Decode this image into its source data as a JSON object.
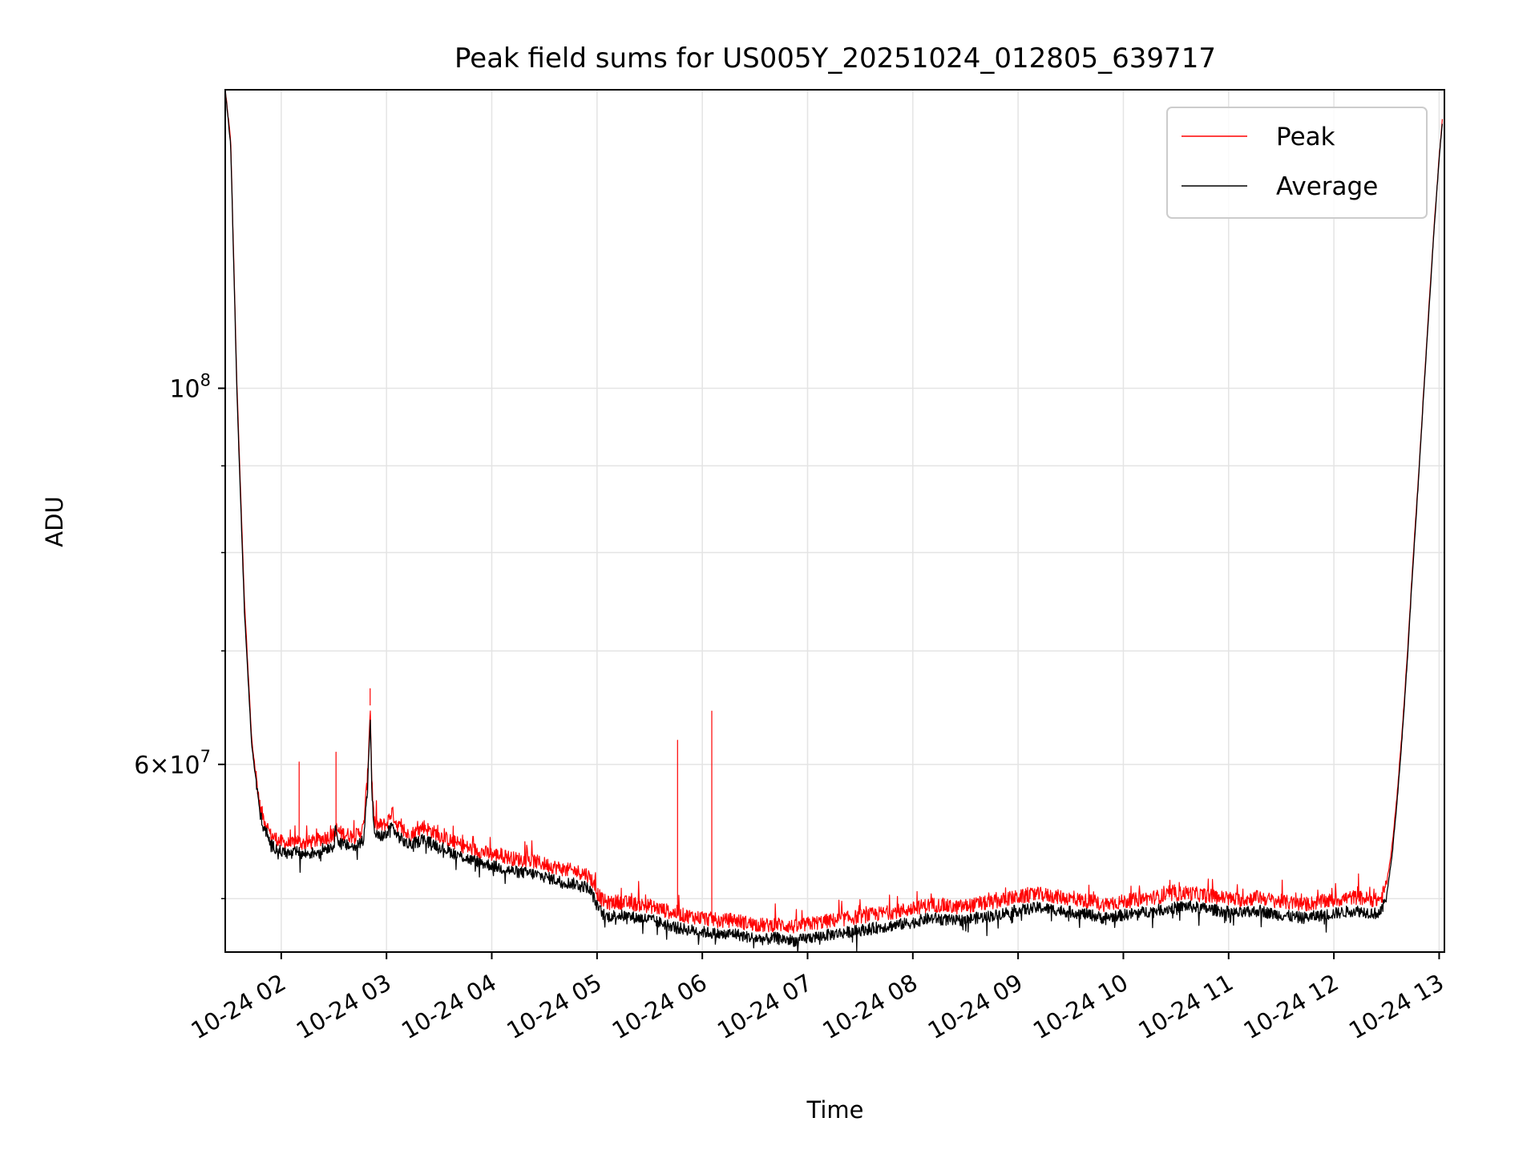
{
  "chart_data": {
    "type": "line",
    "title": "Peak field sums for US005Y_20251024_012805_639717",
    "xlabel": "Time",
    "ylabel": "ADU",
    "yscale": "log",
    "grid": true,
    "legend_position": "top-right",
    "x_unit": "hours since 2025-10-24 00:00",
    "xlim": [
      1.468,
      13.05
    ],
    "ylim": [
      46500000,
      150000000
    ],
    "x_ticks": [
      {
        "value": 2,
        "label": "10-24 02"
      },
      {
        "value": 3,
        "label": "10-24 03"
      },
      {
        "value": 4,
        "label": "10-24 04"
      },
      {
        "value": 5,
        "label": "10-24 05"
      },
      {
        "value": 6,
        "label": "10-24 06"
      },
      {
        "value": 7,
        "label": "10-24 07"
      },
      {
        "value": 8,
        "label": "10-24 08"
      },
      {
        "value": 9,
        "label": "10-24 09"
      },
      {
        "value": 10,
        "label": "10-24 10"
      },
      {
        "value": 11,
        "label": "10-24 11"
      },
      {
        "value": 12,
        "label": "10-24 12"
      },
      {
        "value": 13,
        "label": "10-24 13"
      }
    ],
    "y_major_ticks": [
      {
        "value": 100000000,
        "base": "10",
        "exp": "8"
      },
      {
        "value": 60000000,
        "base": "6×10",
        "exp": "7"
      }
    ],
    "y_minor_ticks": [
      50000000,
      70000000,
      80000000,
      90000000
    ],
    "series": [
      {
        "name": "Peak",
        "color": "#ff0000",
        "x": [
          1.468,
          1.52,
          1.58,
          1.65,
          1.72,
          1.8,
          1.9,
          2.0,
          2.1,
          2.15,
          2.17,
          2.2,
          2.3,
          2.4,
          2.5,
          2.52,
          2.55,
          2.6,
          2.7,
          2.78,
          2.82,
          2.845,
          2.86,
          2.88,
          2.92,
          3.0,
          3.05,
          3.1,
          3.2,
          3.3,
          3.35,
          3.4,
          3.5,
          3.6,
          3.7,
          3.8,
          3.9,
          4.0,
          4.1,
          4.2,
          4.3,
          4.4,
          4.5,
          4.6,
          4.7,
          4.8,
          4.9,
          4.95,
          5.0,
          5.05,
          5.1,
          5.2,
          5.3,
          5.4,
          5.5,
          5.6,
          5.7,
          5.75,
          5.765,
          5.78,
          5.8,
          5.9,
          6.0,
          6.1,
          6.2,
          6.3,
          6.4,
          6.5,
          6.6,
          6.7,
          6.8,
          6.9,
          7.0,
          7.1,
          7.2,
          7.3,
          7.4,
          7.5,
          7.6,
          7.7,
          7.8,
          7.9,
          8.0,
          8.1,
          8.2,
          8.3,
          8.4,
          8.5,
          8.6,
          8.7,
          8.8,
          8.9,
          9.0,
          9.1,
          9.2,
          9.3,
          9.4,
          9.5,
          9.6,
          9.7,
          9.8,
          9.9,
          10.0,
          10.1,
          10.2,
          10.3,
          10.4,
          10.5,
          10.6,
          10.7,
          10.8,
          10.9,
          11.0,
          11.1,
          11.2,
          11.3,
          11.4,
          11.5,
          11.6,
          11.7,
          11.8,
          11.9,
          12.0,
          12.1,
          12.2,
          12.3,
          12.4,
          12.45,
          12.5,
          12.55,
          12.6,
          12.65,
          12.7,
          12.75,
          12.8,
          12.85,
          12.9,
          12.95,
          13.0,
          13.03
        ],
        "y": [
          150000000,
          140000000,
          100000000,
          75000000,
          62000000,
          56500000,
          54500000,
          54000000,
          53800000,
          54200000,
          54000000,
          53900000,
          54000000,
          54300000,
          54500000,
          55000000,
          54700000,
          54600000,
          54400000,
          55000000,
          59000000,
          65000000,
          59000000,
          55500000,
          55200000,
          55300000,
          56300000,
          55300000,
          54500000,
          54800000,
          55200000,
          54900000,
          54500000,
          54100000,
          53800000,
          53500000,
          53300000,
          53100000,
          53000000,
          52800000,
          52700000,
          52600000,
          52400000,
          52200000,
          52000000,
          51900000,
          51700000,
          51300000,
          50400000,
          49900000,
          49700000,
          49800000,
          49700000,
          49600000,
          49500000,
          49300000,
          49100000,
          49000000,
          49100000,
          49000000,
          48900000,
          48800000,
          48700000,
          48600000,
          48500000,
          48600000,
          48400000,
          48300000,
          48200000,
          48300000,
          48200000,
          48100000,
          48300000,
          48400000,
          48500000,
          48600000,
          48700000,
          48800000,
          48900000,
          49000000,
          49100000,
          49200000,
          49300000,
          49500000,
          49600000,
          49500000,
          49400000,
          49500000,
          49600000,
          49700000,
          49800000,
          50000000,
          50100000,
          50200000,
          50300000,
          50200000,
          50100000,
          50000000,
          49900000,
          49800000,
          49600000,
          49700000,
          49800000,
          49900000,
          50000000,
          50100000,
          50200000,
          50300000,
          50400000,
          50300000,
          50200000,
          50100000,
          50000000,
          49900000,
          50000000,
          50100000,
          49900000,
          49800000,
          49700000,
          49600000,
          49700000,
          49800000,
          49900000,
          50000000,
          50100000,
          50000000,
          49900000,
          50000000,
          51000000,
          53500000,
          57500000,
          63000000,
          70000000,
          79000000,
          88000000,
          99000000,
          111000000,
          124000000,
          137000000,
          144000000
        ]
      },
      {
        "name": "Average",
        "color": "#000000",
        "x": [
          1.468,
          1.52,
          1.58,
          1.65,
          1.72,
          1.8,
          1.9,
          2.0,
          2.1,
          2.15,
          2.17,
          2.2,
          2.3,
          2.4,
          2.5,
          2.52,
          2.55,
          2.6,
          2.7,
          2.78,
          2.82,
          2.845,
          2.86,
          2.88,
          2.92,
          3.0,
          3.05,
          3.1,
          3.2,
          3.3,
          3.35,
          3.4,
          3.5,
          3.6,
          3.7,
          3.8,
          3.9,
          4.0,
          4.1,
          4.2,
          4.3,
          4.4,
          4.5,
          4.6,
          4.7,
          4.8,
          4.9,
          4.95,
          5.0,
          5.05,
          5.1,
          5.2,
          5.3,
          5.4,
          5.5,
          5.6,
          5.7,
          5.75,
          5.765,
          5.78,
          5.8,
          5.9,
          6.0,
          6.1,
          6.2,
          6.3,
          6.4,
          6.5,
          6.6,
          6.7,
          6.8,
          6.9,
          7.0,
          7.1,
          7.2,
          7.3,
          7.4,
          7.5,
          7.6,
          7.7,
          7.8,
          7.9,
          8.0,
          8.1,
          8.2,
          8.3,
          8.4,
          8.5,
          8.6,
          8.7,
          8.8,
          8.9,
          9.0,
          9.1,
          9.2,
          9.3,
          9.4,
          9.5,
          9.6,
          9.7,
          9.8,
          9.9,
          10.0,
          10.1,
          10.2,
          10.3,
          10.4,
          10.5,
          10.6,
          10.7,
          10.8,
          10.9,
          11.0,
          11.1,
          11.2,
          11.3,
          11.4,
          11.5,
          11.6,
          11.7,
          11.8,
          11.9,
          12.0,
          12.1,
          12.2,
          12.3,
          12.4,
          12.45,
          12.5,
          12.55,
          12.6,
          12.65,
          12.7,
          12.75,
          12.8,
          12.85,
          12.9,
          12.95,
          13.0,
          13.03
        ],
        "y": [
          150000000,
          139000000,
          99000000,
          74000000,
          61500000,
          56000000,
          53800000,
          53300000,
          53100000,
          53300000,
          53200000,
          53100000,
          53200000,
          53500000,
          53700000,
          55300000,
          53900000,
          53800000,
          53600000,
          54200000,
          58000000,
          64000000,
          58200000,
          54800000,
          54400000,
          54500000,
          55200000,
          54500000,
          53800000,
          54000000,
          54300000,
          54000000,
          53700000,
          53300000,
          53000000,
          52700000,
          52500000,
          52300000,
          52100000,
          51900000,
          51800000,
          51700000,
          51500000,
          51300000,
          51100000,
          51000000,
          50800000,
          50400000,
          49500000,
          49000000,
          48800000,
          48900000,
          48800000,
          48700000,
          48600000,
          48400000,
          48200000,
          48100000,
          48100000,
          48000000,
          48000000,
          47900000,
          47800000,
          47700000,
          47600000,
          47700000,
          47500000,
          47400000,
          47300000,
          47400000,
          47300000,
          47200000,
          47400000,
          47500000,
          47600000,
          47700000,
          47800000,
          47900000,
          48000000,
          48100000,
          48200000,
          48300000,
          48400000,
          48600000,
          48700000,
          48600000,
          48500000,
          48600000,
          48700000,
          48800000,
          48900000,
          49100000,
          49200000,
          49300000,
          49400000,
          49300000,
          49200000,
          49100000,
          49000000,
          48900000,
          48700000,
          48800000,
          48900000,
          49000000,
          49100000,
          49200000,
          49300000,
          49400000,
          49500000,
          49400000,
          49300000,
          49200000,
          49100000,
          49000000,
          49100000,
          49200000,
          49000000,
          48900000,
          48800000,
          48700000,
          48800000,
          48900000,
          49000000,
          49100000,
          49200000,
          49100000,
          49000000,
          49100000,
          50200000,
          52800000,
          57000000,
          62500000,
          69500000,
          78500000,
          87500000,
          98500000,
          110500000,
          123500000,
          136500000,
          143500000
        ]
      }
    ]
  }
}
